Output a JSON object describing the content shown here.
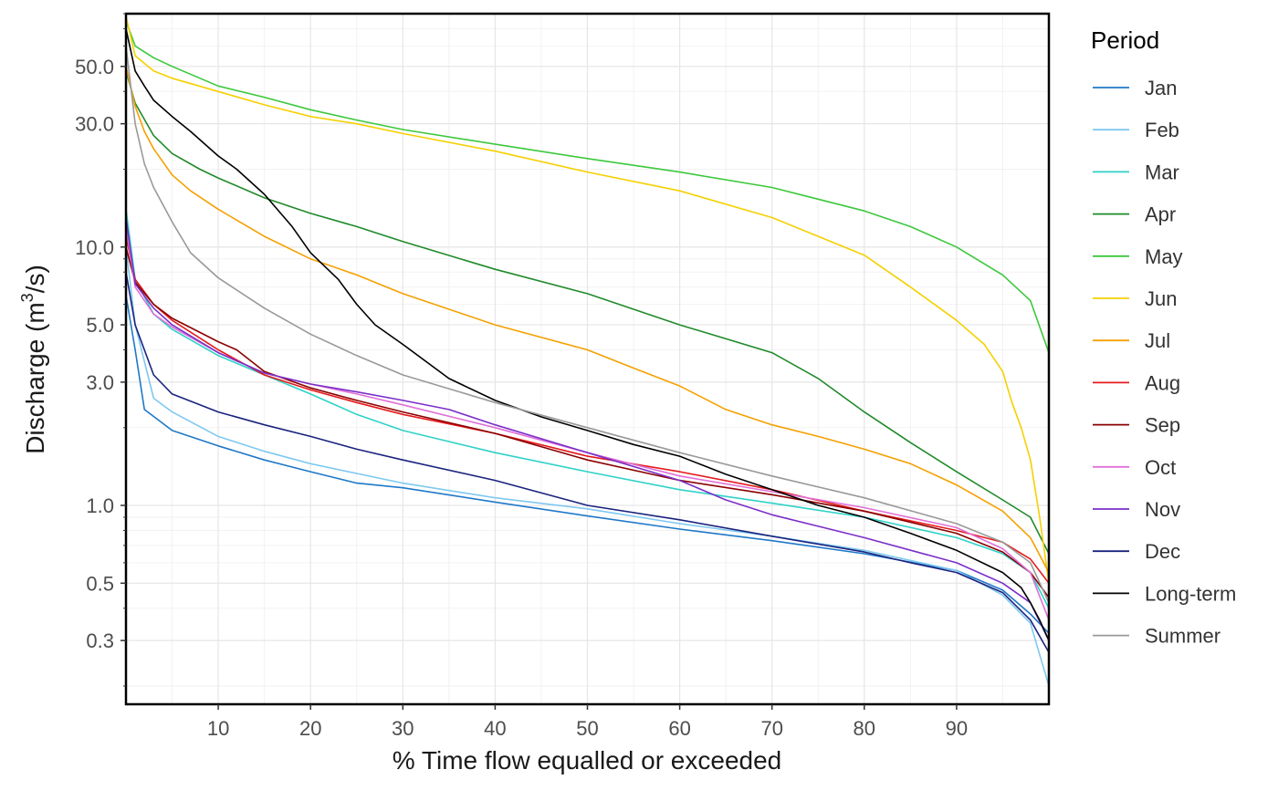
{
  "chart_data": {
    "type": "line",
    "xlabel": "% Time flow equalled or exceeded",
    "ylabel_main": "Discharge (m",
    "ylabel_sup": "3",
    "ylabel_end": "/s)",
    "y_scale": "log",
    "xlim": [
      0,
      100
    ],
    "ylim": [
      0.17,
      80
    ],
    "x_ticks": [
      10,
      20,
      30,
      40,
      50,
      60,
      70,
      80,
      90
    ],
    "y_ticks": [
      0.3,
      0.5,
      1.0,
      3.0,
      5.0,
      10.0,
      30.0,
      50.0
    ],
    "y_tick_labels": [
      "0.3",
      "0.5",
      "1.0",
      "3.0",
      "5.0",
      "10.0",
      "30.0",
      "50.0"
    ],
    "grid": true,
    "legend_title": "Period",
    "legend_position": "right",
    "series": [
      {
        "name": "Jan",
        "color": "#1f78c8",
        "x": [
          0,
          1,
          2,
          5,
          10,
          15,
          20,
          25,
          30,
          40,
          50,
          60,
          70,
          80,
          90,
          95,
          98,
          100
        ],
        "values": [
          6.5,
          4.0,
          2.35,
          1.95,
          1.7,
          1.5,
          1.35,
          1.22,
          1.17,
          1.03,
          0.91,
          0.81,
          0.73,
          0.65,
          0.56,
          0.47,
          0.38,
          0.32
        ]
      },
      {
        "name": "Feb",
        "color": "#7ec8f0",
        "x": [
          0,
          1,
          3,
          5,
          10,
          15,
          20,
          25,
          30,
          40,
          50,
          60,
          70,
          80,
          90,
          95,
          98,
          100
        ],
        "values": [
          10,
          5.0,
          2.6,
          2.3,
          1.85,
          1.62,
          1.45,
          1.33,
          1.22,
          1.07,
          0.97,
          0.85,
          0.76,
          0.67,
          0.56,
          0.45,
          0.35,
          0.2
        ]
      },
      {
        "name": "Mar",
        "color": "#2ed2c8",
        "x": [
          0,
          1,
          3,
          5,
          10,
          15,
          20,
          25,
          30,
          40,
          50,
          60,
          70,
          80,
          90,
          95,
          98,
          100
        ],
        "values": [
          14,
          7.5,
          5.5,
          4.8,
          3.8,
          3.2,
          2.7,
          2.25,
          1.95,
          1.6,
          1.35,
          1.15,
          1.02,
          0.9,
          0.75,
          0.65,
          0.55,
          0.4
        ]
      },
      {
        "name": "Apr",
        "color": "#1f8a2a",
        "x": [
          0,
          1,
          3,
          5,
          8,
          10,
          15,
          20,
          25,
          30,
          40,
          50,
          60,
          70,
          75,
          80,
          85,
          90,
          95,
          98,
          100
        ],
        "values": [
          48,
          36,
          27,
          23,
          20,
          18.5,
          15.5,
          13.5,
          12,
          10.5,
          8.2,
          6.6,
          5.0,
          3.9,
          3.1,
          2.3,
          1.75,
          1.35,
          1.05,
          0.9,
          0.65
        ]
      },
      {
        "name": "May",
        "color": "#3cc83c",
        "x": [
          0,
          1,
          3,
          5,
          10,
          15,
          20,
          25,
          30,
          40,
          50,
          60,
          70,
          80,
          85,
          90,
          95,
          98,
          100
        ],
        "values": [
          75,
          60,
          54,
          50,
          42,
          38,
          34,
          31,
          28.5,
          25,
          22,
          19.5,
          17,
          13.8,
          12.0,
          10.0,
          7.8,
          6.2,
          3.9
        ]
      },
      {
        "name": "Jun",
        "color": "#f5d000",
        "x": [
          0,
          1,
          3,
          5,
          10,
          15,
          20,
          25,
          30,
          40,
          50,
          60,
          70,
          80,
          85,
          90,
          93,
          95,
          96,
          97,
          98,
          99,
          100
        ],
        "values": [
          78,
          55,
          48,
          45,
          40,
          35.5,
          32,
          30,
          27.5,
          23.5,
          19.5,
          16.5,
          13.0,
          9.3,
          7.0,
          5.2,
          4.2,
          3.3,
          2.5,
          2.0,
          1.5,
          0.9,
          0.5
        ]
      },
      {
        "name": "Jul",
        "color": "#f5a000",
        "x": [
          0,
          1,
          2,
          3,
          5,
          7,
          10,
          15,
          20,
          25,
          30,
          40,
          50,
          55,
          60,
          65,
          70,
          75,
          80,
          85,
          90,
          95,
          98,
          100
        ],
        "values": [
          50,
          35,
          28,
          24,
          19,
          16.5,
          14,
          11,
          9.0,
          7.8,
          6.6,
          5.0,
          4.0,
          3.4,
          2.9,
          2.35,
          2.05,
          1.85,
          1.65,
          1.45,
          1.2,
          0.95,
          0.75,
          0.55
        ]
      },
      {
        "name": "Aug",
        "color": "#e41a1c",
        "x": [
          0,
          1,
          3,
          5,
          10,
          15,
          20,
          25,
          30,
          40,
          50,
          60,
          70,
          80,
          90,
          95,
          98,
          100
        ],
        "values": [
          11,
          7.5,
          6.0,
          5.2,
          4.0,
          3.2,
          2.8,
          2.5,
          2.25,
          1.9,
          1.55,
          1.35,
          1.15,
          0.95,
          0.8,
          0.72,
          0.62,
          0.5
        ]
      },
      {
        "name": "Sep",
        "color": "#8b0000",
        "x": [
          0,
          1,
          3,
          5,
          10,
          12,
          15,
          20,
          25,
          30,
          40,
          50,
          60,
          70,
          80,
          90,
          95,
          98,
          100
        ],
        "values": [
          10,
          7.3,
          6.0,
          5.3,
          4.3,
          4.0,
          3.3,
          2.85,
          2.55,
          2.3,
          1.9,
          1.5,
          1.25,
          1.1,
          0.95,
          0.78,
          0.66,
          0.55,
          0.44
        ]
      },
      {
        "name": "Oct",
        "color": "#e070d8",
        "x": [
          0,
          1,
          3,
          5,
          10,
          15,
          20,
          25,
          30,
          40,
          50,
          60,
          70,
          80,
          90,
          95,
          98,
          100
        ],
        "values": [
          12,
          7.0,
          5.5,
          4.9,
          3.9,
          3.25,
          2.95,
          2.7,
          2.45,
          2.0,
          1.6,
          1.3,
          1.13,
          0.98,
          0.82,
          0.68,
          0.55,
          0.36
        ]
      },
      {
        "name": "Nov",
        "color": "#7b2fc8",
        "x": [
          0,
          1,
          3,
          5,
          10,
          15,
          20,
          25,
          30,
          35,
          40,
          50,
          60,
          65,
          70,
          80,
          90,
          95,
          98,
          100
        ],
        "values": [
          13,
          7.2,
          5.8,
          5.0,
          3.9,
          3.25,
          2.95,
          2.75,
          2.55,
          2.35,
          2.05,
          1.6,
          1.25,
          1.05,
          0.92,
          0.75,
          0.6,
          0.5,
          0.42,
          0.3
        ]
      },
      {
        "name": "Dec",
        "color": "#1a237e",
        "x": [
          0,
          1,
          3,
          5,
          10,
          15,
          20,
          25,
          30,
          40,
          50,
          60,
          70,
          80,
          85,
          90,
          95,
          98,
          100
        ],
        "values": [
          8,
          5.0,
          3.2,
          2.7,
          2.3,
          2.05,
          1.85,
          1.65,
          1.5,
          1.25,
          1.0,
          0.88,
          0.76,
          0.66,
          0.6,
          0.55,
          0.46,
          0.36,
          0.27
        ]
      },
      {
        "name": "Long-term",
        "color": "#000000",
        "x": [
          0,
          1,
          2,
          3,
          5,
          7,
          10,
          12,
          15,
          18,
          20,
          23,
          25,
          27,
          30,
          35,
          40,
          45,
          50,
          55,
          60,
          65,
          70,
          75,
          80,
          85,
          90,
          95,
          97,
          98,
          99,
          100
        ],
        "values": [
          70,
          48,
          42,
          37,
          32,
          28,
          22.5,
          20,
          16,
          12,
          9.5,
          7.5,
          6.0,
          5.0,
          4.2,
          3.1,
          2.55,
          2.2,
          1.95,
          1.72,
          1.55,
          1.32,
          1.15,
          1.0,
          0.9,
          0.78,
          0.67,
          0.55,
          0.48,
          0.42,
          0.36,
          0.3
        ]
      },
      {
        "name": "Summer",
        "color": "#999999",
        "x": [
          0,
          1,
          2,
          3,
          5,
          7,
          10,
          15,
          20,
          25,
          30,
          40,
          50,
          60,
          70,
          80,
          90,
          95,
          98,
          100
        ],
        "values": [
          60,
          30,
          21,
          17,
          12.5,
          9.5,
          7.6,
          5.8,
          4.6,
          3.8,
          3.2,
          2.5,
          2.0,
          1.6,
          1.3,
          1.07,
          0.85,
          0.72,
          0.6,
          0.42
        ]
      }
    ]
  }
}
